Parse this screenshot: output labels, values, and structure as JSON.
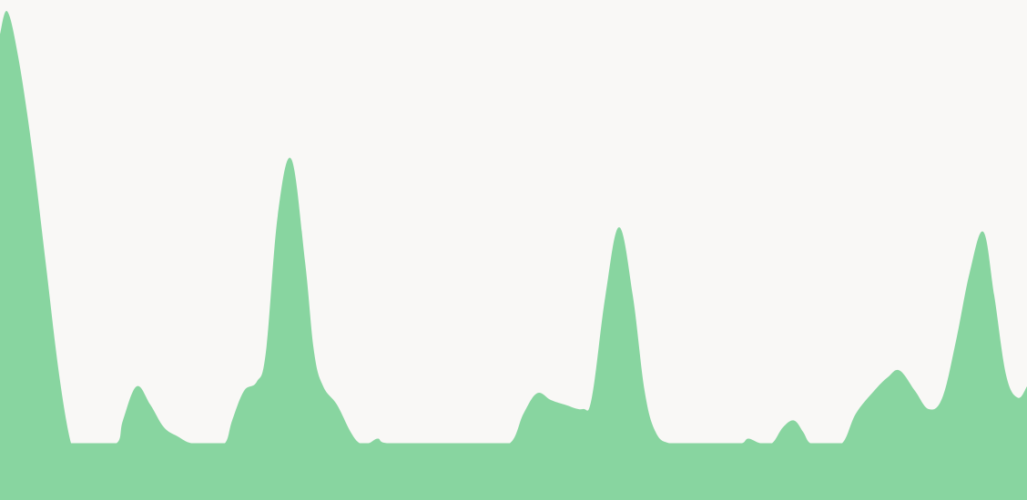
{
  "chart_data": {
    "type": "area",
    "title": "",
    "xlabel": "",
    "ylabel": "",
    "grid": false,
    "legend": "none",
    "xlim": [
      0,
      1128
    ],
    "ylim": [
      0,
      220
    ],
    "baseline": 25,
    "fill_color": "#88d5a0",
    "background_color": "#f9f8f6",
    "series": [
      {
        "points": [
          [
            0,
            205
          ],
          [
            8,
            215
          ],
          [
            20,
            195
          ],
          [
            35,
            155
          ],
          [
            50,
            105
          ],
          [
            65,
            55
          ],
          [
            78,
            25
          ],
          [
            85,
            25
          ],
          [
            100,
            25
          ],
          [
            128,
            25
          ],
          [
            135,
            35
          ],
          [
            150,
            50
          ],
          [
            165,
            42
          ],
          [
            180,
            32
          ],
          [
            195,
            28
          ],
          [
            210,
            25
          ],
          [
            230,
            25
          ],
          [
            247,
            25
          ],
          [
            255,
            35
          ],
          [
            268,
            48
          ],
          [
            282,
            52
          ],
          [
            292,
            65
          ],
          [
            305,
            125
          ],
          [
            320,
            150
          ],
          [
            335,
            105
          ],
          [
            345,
            65
          ],
          [
            355,
            50
          ],
          [
            370,
            42
          ],
          [
            385,
            30
          ],
          [
            395,
            25
          ],
          [
            405,
            25
          ],
          [
            415,
            27
          ],
          [
            425,
            25
          ],
          [
            470,
            25
          ],
          [
            530,
            25
          ],
          [
            560,
            25
          ],
          [
            575,
            38
          ],
          [
            590,
            47
          ],
          [
            605,
            44
          ],
          [
            620,
            42
          ],
          [
            640,
            40
          ],
          [
            650,
            45
          ],
          [
            665,
            90
          ],
          [
            680,
            120
          ],
          [
            695,
            90
          ],
          [
            708,
            48
          ],
          [
            720,
            30
          ],
          [
            735,
            25
          ],
          [
            760,
            25
          ],
          [
            800,
            25
          ],
          [
            815,
            25
          ],
          [
            822,
            27
          ],
          [
            835,
            25
          ],
          [
            848,
            25
          ],
          [
            860,
            32
          ],
          [
            872,
            35
          ],
          [
            882,
            30
          ],
          [
            890,
            25
          ],
          [
            905,
            25
          ],
          [
            925,
            25
          ],
          [
            940,
            38
          ],
          [
            960,
            48
          ],
          [
            975,
            54
          ],
          [
            988,
            57
          ],
          [
            1005,
            48
          ],
          [
            1020,
            40
          ],
          [
            1035,
            45
          ],
          [
            1050,
            70
          ],
          [
            1065,
            100
          ],
          [
            1080,
            118
          ],
          [
            1092,
            90
          ],
          [
            1105,
            55
          ],
          [
            1118,
            45
          ],
          [
            1128,
            50
          ]
        ]
      }
    ]
  }
}
